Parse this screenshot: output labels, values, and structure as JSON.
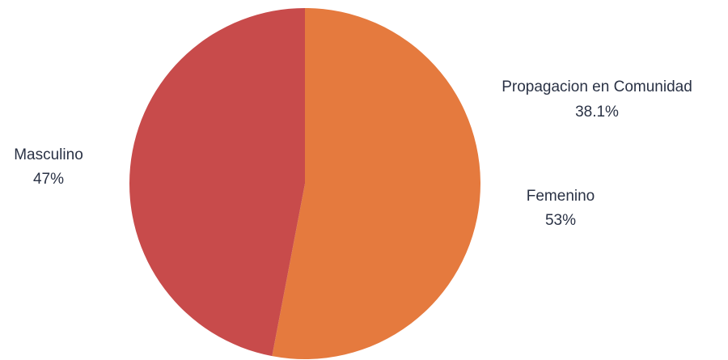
{
  "chart_data": {
    "type": "pie",
    "slices": [
      {
        "label": "Femenino",
        "value": 53,
        "value_label": "53%",
        "color": "#e57a3e"
      },
      {
        "label": "Masculino",
        "value": 47,
        "value_label": "47%",
        "color": "#c84b4b"
      }
    ],
    "annotations": [
      {
        "text": "Propagacion en Comunidad",
        "value_label": "38.1%"
      }
    ]
  }
}
